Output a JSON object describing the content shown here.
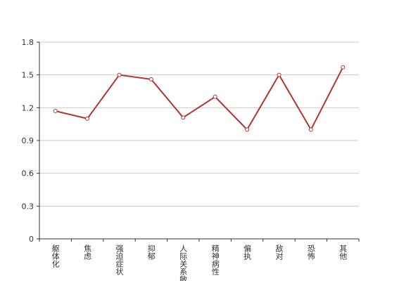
{
  "chart_data": {
    "type": "line",
    "categories": [
      "躯体化",
      "焦虑",
      "强迫症状",
      "抑郁",
      "人际关系敏感",
      "精神病性",
      "偏执",
      "敌对",
      "恐怖",
      "其他"
    ],
    "series": [
      {
        "color": "#b83232",
        "values": [
          1.17,
          1.1,
          1.5,
          1.46,
          1.11,
          1.3,
          1.0,
          1.5,
          1.0,
          1.57
        ]
      }
    ],
    "ylim": [
      0,
      1.8
    ],
    "yticks": [
      0,
      0.3,
      0.6,
      0.9,
      1.2,
      1.5,
      1.8
    ],
    "grid": true
  }
}
